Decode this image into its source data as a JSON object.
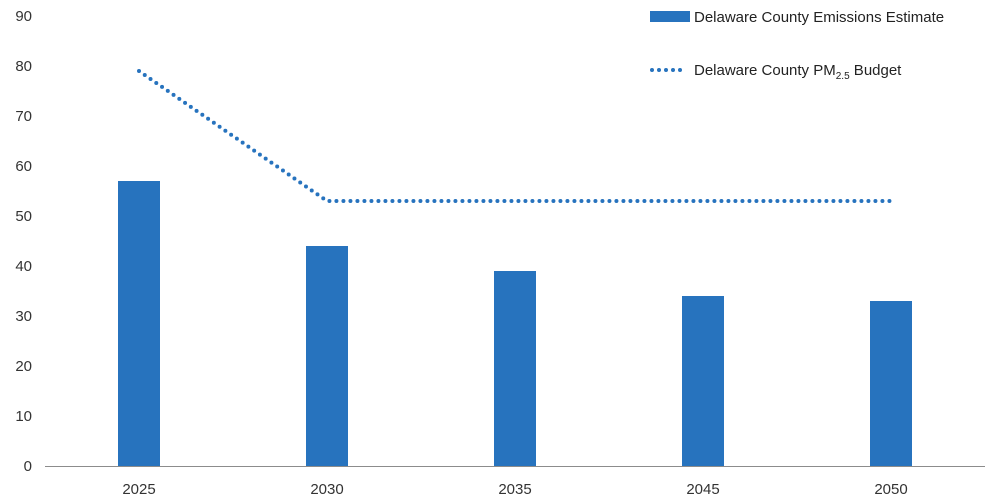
{
  "chart_data": {
    "type": "bar",
    "categories": [
      "2025",
      "2030",
      "2035",
      "2045",
      "2050"
    ],
    "series": [
      {
        "name": "Delaware County Emissions Estimate",
        "type": "bar",
        "color": "#2773be",
        "values": [
          57,
          44,
          39,
          34,
          33
        ]
      },
      {
        "name": "Delaware County PM",
        "name_subscript": "2.5",
        "name_suffix": " Budget",
        "type": "line",
        "style": "dotted",
        "color": "#2773be",
        "values": [
          79,
          53,
          53,
          53,
          53
        ]
      }
    ],
    "yticks": [
      "0",
      "10",
      "20",
      "30",
      "40",
      "50",
      "60",
      "70",
      "80",
      "90"
    ],
    "ylim": [
      0,
      90
    ],
    "grid": false,
    "legend_position": "top-right"
  }
}
